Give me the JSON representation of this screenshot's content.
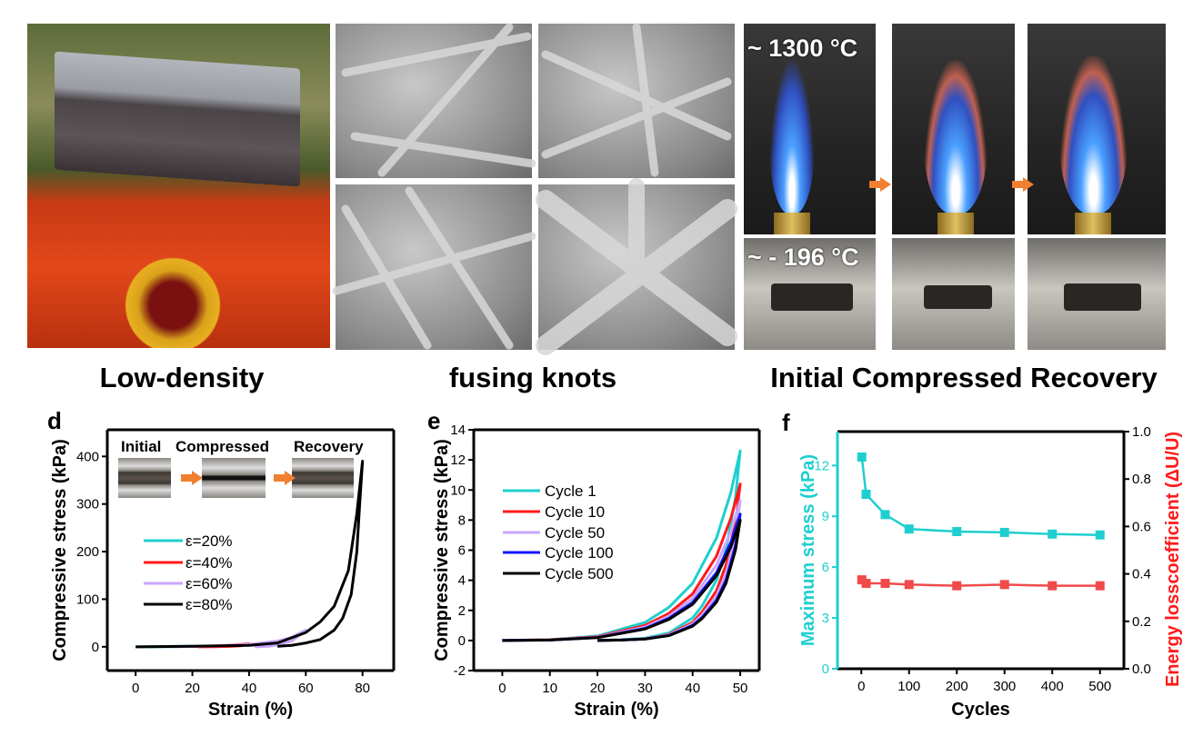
{
  "top_panels": {
    "caption_a": "Low-density",
    "caption_b": "fusing knots",
    "caption_c": "Initial Compressed Recovery",
    "temp_hot": "~ 1300 °C",
    "temp_cold": "~ - 196 °C"
  },
  "colors": {
    "cyan": "#1fcfcf",
    "red": "#ff1a1a",
    "lavender": "#c9a6ff",
    "blue": "#1414ff",
    "black": "#000000",
    "arrow": "#f08030"
  },
  "chart_data": [
    {
      "panel": "d",
      "type": "line",
      "xlabel": "Strain (%)",
      "ylabel": "Compressive stress (kPa)",
      "xlim": [
        -10,
        91
      ],
      "ylim": [
        -50,
        456
      ],
      "xticks": [
        0,
        20,
        40,
        60,
        80
      ],
      "yticks": [
        0,
        100,
        200,
        300,
        400
      ],
      "legend_position": "center-left",
      "inset_labels": [
        "Initial",
        "Compressed",
        "Recovery"
      ],
      "series": [
        {
          "name": "ε=20%",
          "color": "#1fcfcf",
          "x": [
            0,
            10,
            20,
            15,
            10,
            5,
            0
          ],
          "y": [
            0,
            0.5,
            1.2,
            0.3,
            0.1,
            0,
            0
          ]
        },
        {
          "name": "ε=40%",
          "color": "#ff1a1a",
          "x": [
            20,
            30,
            40,
            37,
            33,
            28,
            22
          ],
          "y": [
            0.5,
            2,
            6,
            2,
            0.8,
            0.2,
            0
          ]
        },
        {
          "name": "ε=60%",
          "color": "#c9a6ff",
          "x": [
            12,
            30,
            40,
            50,
            55,
            60,
            58,
            55,
            50,
            47,
            42
          ],
          "y": [
            0,
            2,
            5,
            12,
            20,
            35,
            25,
            12,
            4,
            1,
            0
          ]
        },
        {
          "name": "ε=80%",
          "color": "#000000",
          "x": [
            0,
            20,
            40,
            50,
            60,
            65,
            70,
            75,
            78,
            80,
            79,
            78,
            76,
            73,
            70,
            65,
            60,
            55,
            50
          ],
          "y": [
            0,
            1,
            3,
            8,
            30,
            52,
            85,
            160,
            280,
            390,
            300,
            200,
            110,
            60,
            35,
            15,
            8,
            3,
            1
          ]
        }
      ]
    },
    {
      "panel": "e",
      "type": "line",
      "xlabel": "Strain (%)",
      "ylabel": "Compressive stress (kPa)",
      "xlim": [
        -6,
        54
      ],
      "ylim": [
        -2,
        14
      ],
      "xticks": [
        0,
        10,
        20,
        30,
        40,
        50
      ],
      "yticks": [
        -2,
        0,
        2,
        4,
        6,
        8,
        10,
        12,
        14
      ],
      "legend_position": "center-left",
      "series": [
        {
          "name": "Cycle 1",
          "color": "#1fcfcf",
          "x": [
            0,
            10,
            20,
            30,
            35,
            40,
            45,
            48,
            50,
            49,
            47,
            45,
            42,
            40,
            35,
            30,
            25,
            20
          ],
          "y": [
            0,
            0.05,
            0.3,
            1.2,
            2.2,
            3.8,
            6.8,
            9.8,
            12.6,
            9.5,
            6.0,
            4.0,
            2.3,
            1.5,
            0.5,
            0.15,
            0.05,
            0
          ]
        },
        {
          "name": "Cycle 10",
          "color": "#ff1a1a",
          "x": [
            0,
            10,
            20,
            30,
            35,
            40,
            45,
            48,
            50,
            49,
            47,
            45,
            42,
            40,
            35,
            30,
            25,
            20
          ],
          "y": [
            0,
            0.05,
            0.25,
            1.0,
            1.8,
            3.1,
            5.6,
            8.1,
            10.4,
            7.8,
            5.0,
            3.3,
            1.9,
            1.2,
            0.4,
            0.1,
            0.03,
            0
          ]
        },
        {
          "name": "Cycle 50",
          "color": "#c9a6ff",
          "x": [
            0,
            10,
            20,
            30,
            35,
            40,
            45,
            48,
            50,
            49,
            47,
            45,
            42,
            40,
            35,
            30,
            25,
            20
          ],
          "y": [
            0,
            0.04,
            0.22,
            0.89,
            1.62,
            2.8,
            5.0,
            7.2,
            9.3,
            7.0,
            4.4,
            2.95,
            1.7,
            1.1,
            0.37,
            0.11,
            0.04,
            0
          ]
        },
        {
          "name": "Cycle 100",
          "color": "#1414ff",
          "x": [
            0,
            10,
            20,
            30,
            35,
            40,
            45,
            48,
            50,
            49,
            47,
            45,
            42,
            40,
            35,
            30,
            25,
            20
          ],
          "y": [
            0,
            0.03,
            0.2,
            0.8,
            1.47,
            2.53,
            4.5,
            6.5,
            8.4,
            6.3,
            4.0,
            2.67,
            1.53,
            1.0,
            0.33,
            0.1,
            0.03,
            0
          ]
        },
        {
          "name": "Cycle 500",
          "color": "#000000",
          "x": [
            0,
            10,
            20,
            30,
            35,
            40,
            45,
            48,
            50,
            49,
            47,
            45,
            42,
            40,
            35,
            30,
            25,
            20
          ],
          "y": [
            0,
            0.03,
            0.19,
            0.76,
            1.4,
            2.4,
            4.3,
            6.2,
            8.0,
            6.0,
            3.8,
            2.54,
            1.46,
            0.95,
            0.32,
            0.1,
            0.03,
            0
          ]
        }
      ]
    },
    {
      "panel": "f",
      "type": "line",
      "xlabel": "Cycles",
      "ylabel": "Maximum stress (kPa)",
      "ylabel_right": "Energy losscoefficient (ΔU/U)",
      "xlim": [
        -50,
        550
      ],
      "ylim": [
        0,
        14
      ],
      "ylim_right": [
        0,
        1.0
      ],
      "xticks": [
        0,
        100,
        200,
        300,
        400,
        500
      ],
      "yticks": [
        0,
        3,
        6,
        9,
        12
      ],
      "yticks_right": [
        0.0,
        0.2,
        0.4,
        0.6,
        0.8,
        1.0
      ],
      "series": [
        {
          "axis": "left",
          "color": "#1fcfcf",
          "x": [
            1,
            10,
            50,
            100,
            200,
            300,
            400,
            500
          ],
          "y": [
            12.5,
            10.3,
            9.1,
            8.25,
            8.1,
            8.05,
            7.95,
            7.9
          ]
        },
        {
          "axis": "right",
          "color": "#f04a4a",
          "x": [
            1,
            10,
            50,
            100,
            200,
            300,
            400,
            500
          ],
          "y": [
            0.375,
            0.36,
            0.36,
            0.355,
            0.35,
            0.355,
            0.35,
            0.35
          ]
        }
      ]
    }
  ]
}
